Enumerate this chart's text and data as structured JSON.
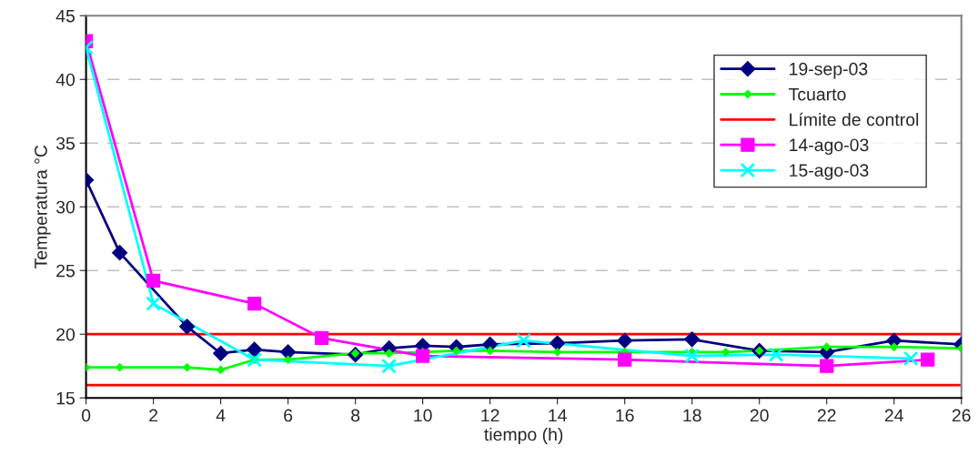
{
  "chart_data": {
    "type": "line",
    "xlabel": "tiempo (h)",
    "ylabel": "Temperatura °C",
    "xlim": [
      0,
      26
    ],
    "xticks": [
      0,
      2,
      4,
      6,
      8,
      10,
      12,
      14,
      16,
      18,
      20,
      22,
      24,
      26
    ],
    "ylim": [
      15,
      45
    ],
    "yticks": [
      15,
      20,
      25,
      30,
      35,
      40,
      45
    ],
    "grid": "y",
    "legend": "top right",
    "series": [
      {
        "name": "19-sep-03",
        "color": "#000080",
        "marker": "diamond",
        "x": [
          0,
          1,
          3,
          4,
          5,
          6,
          8,
          9,
          10,
          11,
          12,
          14,
          16,
          18,
          20,
          22,
          24,
          26
        ],
        "values": [
          32.1,
          26.4,
          20.6,
          18.5,
          18.8,
          18.6,
          18.4,
          18.9,
          19.1,
          19.0,
          19.2,
          19.3,
          19.5,
          19.6,
          18.7,
          18.6,
          19.5,
          19.2
        ]
      },
      {
        "name": "Tcuarto",
        "color": "#00ff00",
        "marker": "diamond",
        "x": [
          0,
          1,
          3,
          4,
          5,
          6,
          8,
          9,
          10,
          11,
          12,
          14,
          16,
          18,
          19,
          20,
          22,
          24,
          26
        ],
        "values": [
          17.4,
          17.4,
          17.4,
          17.2,
          18.0,
          18.0,
          18.5,
          18.5,
          18.6,
          18.7,
          18.7,
          18.6,
          18.6,
          18.6,
          18.6,
          18.7,
          19.0,
          19.0,
          18.9
        ]
      },
      {
        "name": "14-ago-03",
        "color": "#ff00ff",
        "marker": "square",
        "x": [
          0,
          2,
          5,
          7,
          10,
          16,
          22,
          25
        ],
        "values": [
          43.0,
          24.2,
          22.4,
          19.7,
          18.3,
          18.0,
          17.5,
          18.0
        ]
      },
      {
        "name": "15-ago-03",
        "color": "#00ffff",
        "marker": "cross",
        "x": [
          0,
          2,
          5,
          9,
          13,
          18,
          20.5,
          24.5
        ],
        "values": [
          42.5,
          22.4,
          18.0,
          17.5,
          19.5,
          18.3,
          18.4,
          18.1
        ]
      }
    ],
    "ref_lines": [
      {
        "axis": "y",
        "value": 20,
        "label": "Límite de control",
        "color": "#ff0000"
      },
      {
        "axis": "y",
        "value": 16,
        "color": "#ff0000"
      }
    ]
  }
}
